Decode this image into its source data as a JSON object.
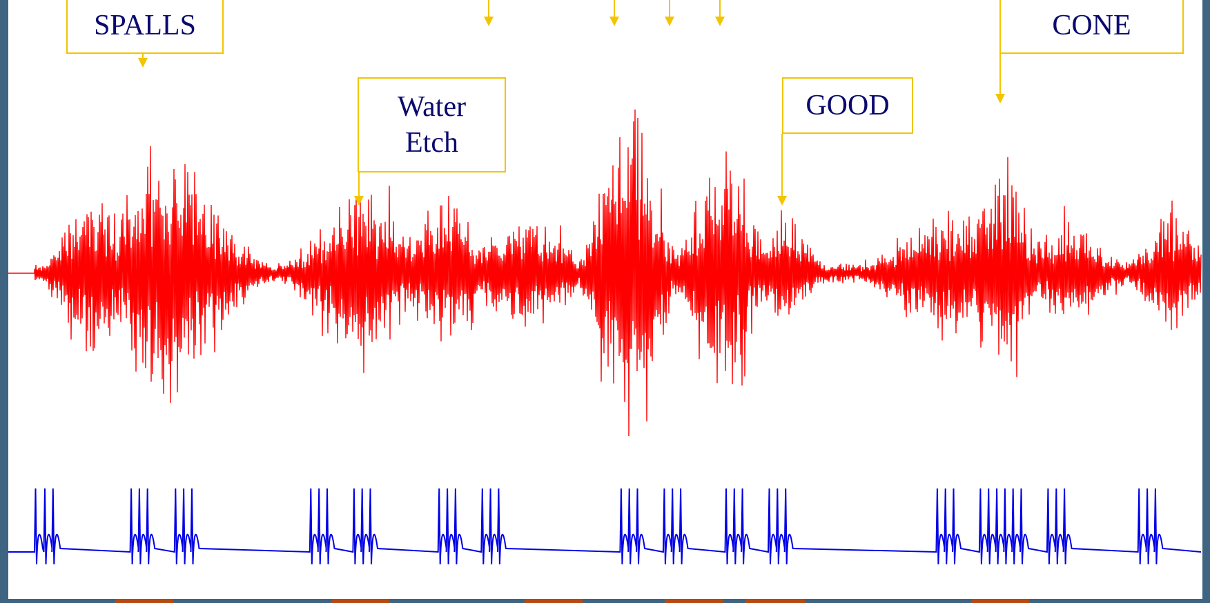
{
  "colors": {
    "background": "#3f6482",
    "panel": "#ffffff",
    "signal": "#ff0000",
    "trigger": "#0000e6",
    "callout_border": "#f2c500",
    "callout_text": "#0a0a6e",
    "marker": "#b64a10"
  },
  "callouts": [
    {
      "id": "spalls",
      "text": "SPALLS"
    },
    {
      "id": "water-etch",
      "text": "Water\nEtch"
    },
    {
      "id": "good",
      "text": "GOOD"
    },
    {
      "id": "cone",
      "text": "CONE"
    }
  ],
  "chart_data": {
    "type": "line",
    "title": "",
    "xlabel": "",
    "ylabel": "",
    "grid": false,
    "series": [
      {
        "role": "acoustic-signal",
        "bursts": [
          {
            "center": 0.05,
            "width": 0.03,
            "amp": 0.55
          },
          {
            "center": 0.115,
            "width": 0.055,
            "amp": 0.78
          },
          {
            "center": 0.28,
            "width": 0.045,
            "amp": 0.55
          },
          {
            "center": 0.35,
            "width": 0.035,
            "amp": 0.45
          },
          {
            "center": 0.42,
            "width": 0.045,
            "amp": 0.35
          },
          {
            "center": 0.51,
            "width": 0.03,
            "amp": 1.0
          },
          {
            "center": 0.59,
            "width": 0.03,
            "amp": 0.75
          },
          {
            "center": 0.645,
            "width": 0.025,
            "amp": 0.35
          },
          {
            "center": 0.78,
            "width": 0.05,
            "amp": 0.4
          },
          {
            "center": 0.83,
            "width": 0.025,
            "amp": 0.7
          },
          {
            "center": 0.885,
            "width": 0.04,
            "amp": 0.32
          },
          {
            "center": 0.975,
            "width": 0.03,
            "amp": 0.38
          }
        ],
        "baseline_amp": 0.06
      },
      {
        "role": "trigger-pulses",
        "pulse_groups": [
          [
            0.0,
            0.008,
            0.015
          ],
          [
            0.082,
            0.089,
            0.096
          ],
          [
            0.12,
            0.127,
            0.134
          ],
          [
            0.236,
            0.243,
            0.25
          ],
          [
            0.273,
            0.28,
            0.287
          ],
          [
            0.346,
            0.353,
            0.36
          ],
          [
            0.383,
            0.39,
            0.397
          ],
          [
            0.502,
            0.509,
            0.516
          ],
          [
            0.539,
            0.546,
            0.553
          ],
          [
            0.592,
            0.599,
            0.606
          ],
          [
            0.629,
            0.636,
            0.643
          ],
          [
            0.773,
            0.78,
            0.787
          ],
          [
            0.81,
            0.817,
            0.824
          ],
          [
            0.831,
            0.838,
            0.845
          ],
          [
            0.868,
            0.875,
            0.882
          ],
          [
            0.946,
            0.953,
            0.96
          ]
        ]
      }
    ]
  }
}
